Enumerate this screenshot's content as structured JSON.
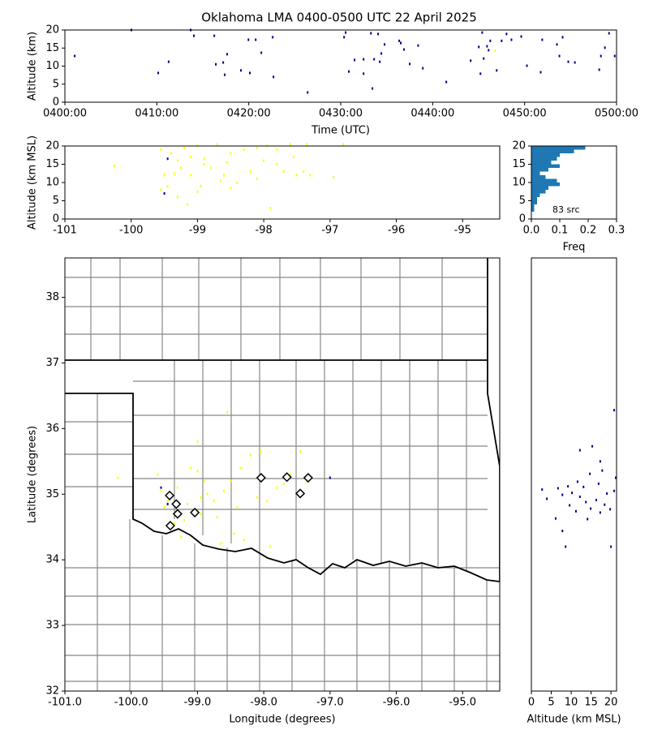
{
  "chart_data": [
    {
      "type": "scatter",
      "title": "Oklahoma LMA 0400-0500 UTC 22 April 2025",
      "xlabel": "Time (UTC)",
      "ylabel": "Altitude (km)",
      "xlim": [
        "0400:00",
        "0500:00"
      ],
      "xticks": [
        "0400:00",
        "0410:00",
        "0420:00",
        "0430:00",
        "0440:00",
        "0450:00",
        "0500:00"
      ],
      "ylim": [
        0,
        20
      ],
      "yticks": [
        0,
        5,
        10,
        15,
        20
      ],
      "series": [
        {
          "color": "#00008b",
          "x": [
            "0401:04",
            "0407:14",
            "0410:09",
            "0411:17",
            "0413:41",
            "0414:02",
            "0416:15",
            "0416:25",
            "0417:13",
            "0417:23",
            "0417:39",
            "0419:09",
            "0419:58",
            "0420:45",
            "0421:22",
            "0420:07",
            "0422:36",
            "0422:41",
            "0426:24",
            "0430:22",
            "0430:32",
            "0430:53",
            "0431:30",
            "0432:29",
            "0432:29",
            "0433:17",
            "0433:27",
            "0433:38",
            "0434:04",
            "0434:15",
            "0434:25",
            "0434:46",
            "0436:22",
            "0436:32",
            "0436:53",
            "0437:30",
            "0438:25",
            "0438:56",
            "0441:29",
            "0444:08",
            "0445:01",
            "0445:12",
            "0445:23",
            "0445:33",
            "0445:55",
            "0446:05",
            "0446:16",
            "0446:58",
            "0447:30",
            "0448:02",
            "0448:34",
            "0449:38",
            "0450:15",
            "0451:45",
            "0451:55",
            "0453:31",
            "0453:47",
            "0454:08",
            "0454:45",
            "0455:28",
            "0458:07",
            "0458:18",
            "0458:44",
            "0459:11",
            "0459:48"
          ],
          "values": [
            12.8,
            20,
            8.1,
            11.2,
            20,
            18.4,
            18.4,
            10.5,
            11,
            7.6,
            13.3,
            8.8,
            17.3,
            17.3,
            13.7,
            8.1,
            18,
            7,
            2.7,
            18,
            19.3,
            8.5,
            11.7,
            11.9,
            7.9,
            19.1,
            3.8,
            11.9,
            18.9,
            11.2,
            13.5,
            16,
            17,
            16.4,
            14.6,
            10.6,
            15.7,
            9.4,
            5.6,
            11.5,
            15.3,
            7.9,
            19.3,
            12.1,
            15.5,
            14.4,
            17,
            8.8,
            17,
            18.9,
            17.3,
            18.2,
            10.1,
            8.3,
            17.3,
            16,
            12.8,
            18,
            11.2,
            11,
            9,
            12.8,
            15.1,
            19.1,
            12.8
          ]
        },
        {
          "color": "#ffff00",
          "x": [
            "0446:48"
          ],
          "values": [
            14.2
          ]
        }
      ]
    },
    {
      "type": "scatter",
      "ylabel": "Altitude (km MSL)",
      "xlim": [
        -101,
        -94.44
      ],
      "xticks": [
        -101,
        -100,
        -99,
        -98,
        -97,
        -96,
        -95
      ],
      "ylim": [
        0,
        20
      ],
      "yticks": [
        0,
        5,
        10,
        15,
        20
      ],
      "series": [
        {
          "color": "#ffff00",
          "x": [
            -100.25,
            -99.55,
            -99.4,
            -99.3,
            -99.2,
            -99.1,
            -99.0,
            -98.9,
            -98.7,
            -98.5,
            -98.3,
            -98.1,
            -97.95,
            -97.8,
            -97.6,
            -97.35,
            -99.5,
            -99.45,
            -99.3,
            -99.1,
            -99.0,
            -98.95,
            -98.8,
            -98.6,
            -98.4,
            -98.2,
            -98.0,
            -97.8,
            -97.7,
            -97.5,
            -97.55,
            -97.3,
            -98.5,
            -98.65,
            -99.15,
            -98.55,
            -98.1,
            -97.9,
            -96.95,
            -96.8,
            -99.55,
            -99.25,
            -99.35,
            -98.9,
            -97.4
          ],
          "values": [
            14.5,
            19,
            18,
            16,
            19.5,
            17,
            20,
            15,
            20.5,
            18,
            19,
            19.5,
            20,
            19,
            20.5,
            20.5,
            12,
            9,
            6,
            12,
            7.5,
            9,
            14,
            12,
            10,
            13,
            16,
            15,
            13,
            12,
            17,
            12,
            8.5,
            10.5,
            4,
            15.5,
            11,
            3,
            11.5,
            20.5,
            8,
            14,
            12.5,
            16.5,
            13
          ]
        },
        {
          "color": "#00008b",
          "x": [
            -99.5,
            -99.45
          ],
          "values": [
            7,
            16.5
          ]
        }
      ]
    },
    {
      "type": "histogram",
      "orientation": "horizontal",
      "xlabel": "Freq",
      "annotation": "83 src",
      "color": "#1f77b4",
      "xlim": [
        0,
        0.3
      ],
      "xticks": [
        {
          "value": 0,
          "label": "0.0"
        },
        0.1,
        0.2,
        0.3
      ],
      "ylim": [
        0,
        20
      ],
      "yticks": [
        0,
        5,
        10,
        15,
        20
      ],
      "bins": [
        0,
        1,
        2,
        3,
        4,
        5,
        6,
        7,
        8,
        9,
        10,
        11,
        12,
        13,
        14,
        15,
        16,
        17,
        18,
        19,
        20
      ],
      "values": [
        0,
        0,
        0.01,
        0.01,
        0.02,
        0.02,
        0.03,
        0.05,
        0.06,
        0.1,
        0.09,
        0.05,
        0.03,
        0.06,
        0.1,
        0.07,
        0.09,
        0.1,
        0.15,
        0.19
      ]
    },
    {
      "type": "scatter",
      "xlabel": "Longitude (degrees)",
      "ylabel": "Latitude (degrees)",
      "xlim": [
        -101,
        -94.44
      ],
      "xticks": [
        {
          "value": -101,
          "label": "-101.0"
        },
        {
          "value": -100,
          "label": "-100.0"
        },
        {
          "value": -99,
          "label": "-99.0"
        },
        {
          "value": -98,
          "label": "-98.0"
        },
        {
          "value": -97,
          "label": "-97.0"
        },
        {
          "value": -96,
          "label": "-96.0"
        },
        {
          "value": -95,
          "label": "-95.0"
        }
      ],
      "ylim": [
        32,
        38.6
      ],
      "yticks": [
        32,
        33,
        34,
        35,
        36,
        37,
        38
      ],
      "series": [
        {
          "color": "#ffff00",
          "x": [
            -100.2,
            -99.6,
            -99.45,
            -99.3,
            -99.2,
            -99.1,
            -99.0,
            -98.95,
            -98.85,
            -98.7,
            -98.6,
            -98.5,
            -98.4,
            -98.3,
            -98.2,
            -98.05,
            -97.95,
            -97.8,
            -97.6,
            -97.45,
            -97.35,
            -99.55,
            -99.5,
            -99.35,
            -99.15,
            -98.95,
            -98.75,
            -98.65,
            -98.45,
            -98.1,
            -97.9,
            -98.35,
            -99.25,
            -99.0,
            -98.55,
            -98.9,
            -97.7
          ],
          "values": [
            35.25,
            35.3,
            34.9,
            35.1,
            34.6,
            35.4,
            35.8,
            34.95,
            35.0,
            34.65,
            35.05,
            35.2,
            34.8,
            34.3,
            35.6,
            35.65,
            34.9,
            35.1,
            35.3,
            35.65,
            35.2,
            35.05,
            34.8,
            34.55,
            34.85,
            34.7,
            34.9,
            34.25,
            34.4,
            34.95,
            34.2,
            35.4,
            34.35,
            35.35,
            36.25,
            35.2,
            35.15
          ]
        },
        {
          "color": "#00008b",
          "x": [
            -99.45,
            -99.3,
            -99.55,
            -97.0
          ],
          "values": [
            34.85,
            34.75,
            35.1,
            35.25
          ]
        },
        {
          "color": "#000000",
          "marker": "diamond",
          "x": [
            -99.42,
            -99.32,
            -99.3,
            -99.04,
            -99.41,
            -98.04,
            -97.65,
            -97.33,
            -97.45
          ],
          "values": [
            34.98,
            34.85,
            34.7,
            34.72,
            34.52,
            35.25,
            35.26,
            35.25,
            35.01
          ]
        }
      ]
    },
    {
      "type": "scatter",
      "xlabel": "Altitude (km MSL)",
      "xlim": [
        0,
        21.4
      ],
      "xticks": [
        0,
        5,
        10,
        15,
        20
      ],
      "ylim": [
        32,
        38.6
      ],
      "series": [
        {
          "color": "#00008b",
          "x": [
            20.8,
            12.2,
            15.3,
            17.3,
            17.8,
            21.2,
            14.7,
            11.6,
            9.2,
            2.7,
            3.9,
            6.7,
            10.2,
            12.2,
            13.7,
            16.3,
            18.4,
            19.8,
            6.1,
            7.8,
            8.6,
            20,
            11.2,
            14.9,
            9.6,
            13.1,
            16.9,
            18.98,
            20.8,
            7.8,
            17.3,
            14.1
          ],
          "values": [
            36.28,
            35.67,
            35.73,
            35.5,
            35.36,
            35.25,
            35.31,
            35.19,
            35.12,
            35.07,
            34.93,
            35.09,
            35.02,
            34.96,
            34.88,
            34.91,
            34.84,
            34.77,
            34.63,
            34.44,
            34.2,
            34.2,
            34.74,
            34.78,
            34.83,
            35.11,
            35.16,
            35.01,
            35.05,
            34.99,
            34.72,
            34.62
          ]
        }
      ]
    }
  ]
}
